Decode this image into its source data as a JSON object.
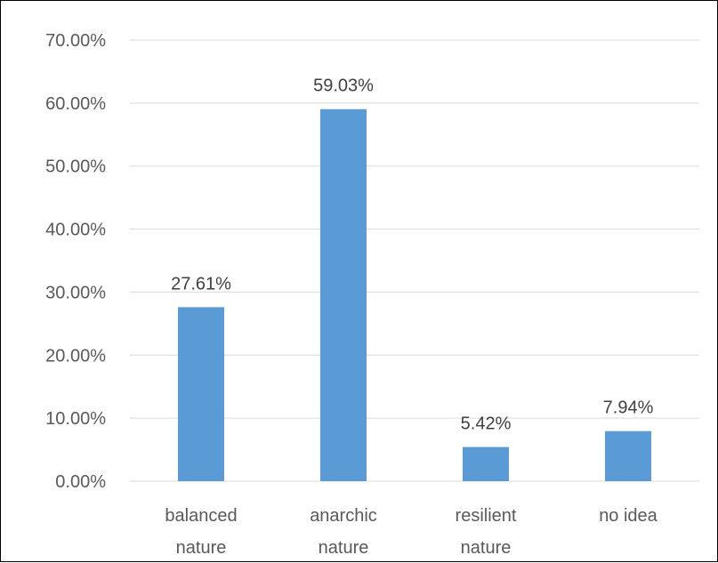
{
  "chart_data": {
    "type": "bar",
    "categories": [
      [
        "balanced",
        "nature"
      ],
      [
        "anarchic",
        "nature"
      ],
      [
        "resilient",
        "nature"
      ],
      [
        "no idea"
      ]
    ],
    "values": [
      27.61,
      59.03,
      5.42,
      7.94
    ],
    "data_labels": [
      "27.61%",
      "59.03%",
      "5.42%",
      "7.94%"
    ],
    "y_ticks": [
      "0.00%",
      "10.00%",
      "20.00%",
      "30.00%",
      "40.00%",
      "50.00%",
      "60.00%",
      "70.00%"
    ],
    "ylim": [
      0,
      70
    ],
    "grid": true,
    "legend": "none",
    "colors": {
      "bar": "#5b9bd5",
      "gridline": "#d9d9d9",
      "text": "#595959"
    }
  }
}
